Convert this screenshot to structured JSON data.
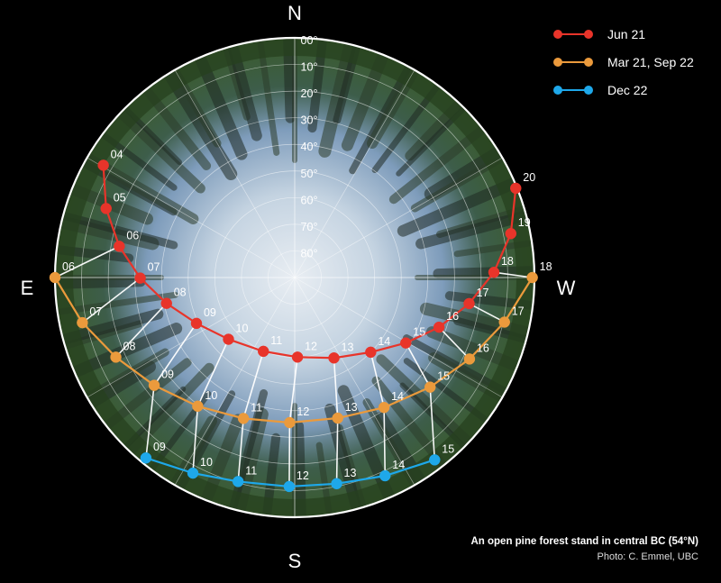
{
  "compass": {
    "north": "N",
    "south": "S",
    "east": "E",
    "west": "W"
  },
  "altitude_labels": [
    "00°",
    "10°",
    "20°",
    "30°",
    "40°",
    "50°",
    "60°",
    "70°",
    "80°"
  ],
  "legend": [
    {
      "label": "Jun 21",
      "color": "#e8342a"
    },
    {
      "label": "Mar 21, Sep 22",
      "color": "#eb9a3c"
    },
    {
      "label": "Dec 22",
      "color": "#1ea8ea"
    }
  ],
  "chart_data": {
    "type": "polar",
    "r_axis_degrees": [
      0,
      10,
      20,
      30,
      40,
      50,
      60,
      70,
      80
    ],
    "series": [
      {
        "name": "Jun 21",
        "color": "#e8342a",
        "points": [
          {
            "hour": "04",
            "az": 59.6,
            "alt": 6.7
          },
          {
            "hour": "05",
            "az": 69.9,
            "alt": 14.6
          },
          {
            "hour": "06",
            "az": 79.9,
            "alt": 23.1
          },
          {
            "hour": "07",
            "az": 90.2,
            "alt": 32.0
          },
          {
            "hour": "08",
            "az": 101.4,
            "alt": 40.9
          },
          {
            "hour": "09",
            "az": 115.0,
            "alt": 49.3
          },
          {
            "hour": "10",
            "az": 133.0,
            "alt": 56.0
          },
          {
            "hour": "11",
            "az": 157.0,
            "alt": 59.9
          },
          {
            "hour": "12",
            "az": 182.0,
            "alt": 60.1
          },
          {
            "hour": "13",
            "az": 206.0,
            "alt": 56.4
          },
          {
            "hour": "14",
            "az": 225.5,
            "alt": 50.0
          },
          {
            "hour": "15",
            "az": 239.5,
            "alt": 41.6
          },
          {
            "hour": "16",
            "az": 251.0,
            "alt": 32.7
          },
          {
            "hour": "17",
            "az": 261.5,
            "alt": 23.8
          },
          {
            "hour": "18",
            "az": 271.5,
            "alt": 15.2
          },
          {
            "hour": "19",
            "az": 281.5,
            "alt": 7.2
          },
          {
            "hour": "20",
            "az": 292.0,
            "alt": 0.5
          }
        ]
      },
      {
        "name": "Mar 21, Sep 22",
        "color": "#eb9a3c",
        "points": [
          {
            "hour": "06",
            "az": 90.0,
            "alt": 0.0
          },
          {
            "hour": "07",
            "az": 102.0,
            "alt": 8.5
          },
          {
            "hour": "08",
            "az": 114.0,
            "alt": 16.5
          },
          {
            "hour": "09",
            "az": 127.5,
            "alt": 23.5
          },
          {
            "hour": "10",
            "az": 143.0,
            "alt": 29.5
          },
          {
            "hour": "11",
            "az": 160.0,
            "alt": 33.7
          },
          {
            "hour": "12",
            "az": 178.0,
            "alt": 35.5
          },
          {
            "hour": "13",
            "az": 197.0,
            "alt": 34.8
          },
          {
            "hour": "14",
            "az": 214.5,
            "alt": 30.8
          },
          {
            "hour": "15",
            "az": 231.0,
            "alt": 24.6
          },
          {
            "hour": "16",
            "az": 245.0,
            "alt": 17.6
          },
          {
            "hour": "17",
            "az": 258.0,
            "alt": 9.5
          },
          {
            "hour": "18",
            "az": 270.0,
            "alt": 0.8
          }
        ]
      },
      {
        "name": "Dec 22",
        "color": "#1ea8ea",
        "points": [
          {
            "hour": "09",
            "az": 140.5,
            "alt": 2.2
          },
          {
            "hour": "10",
            "az": 152.5,
            "alt": 7.2
          },
          {
            "hour": "11",
            "az": 164.5,
            "alt": 10.5
          },
          {
            "hour": "12",
            "az": 178.5,
            "alt": 11.5
          },
          {
            "hour": "13",
            "az": 191.5,
            "alt": 11.0
          },
          {
            "hour": "14",
            "az": 204.5,
            "alt": 8.2
          },
          {
            "hour": "15",
            "az": 217.5,
            "alt": 3.7
          }
        ]
      }
    ]
  },
  "caption": {
    "title": "An open pine forest stand in central BC (54°N)",
    "credit": "Photo: C. Emmel, UBC"
  }
}
